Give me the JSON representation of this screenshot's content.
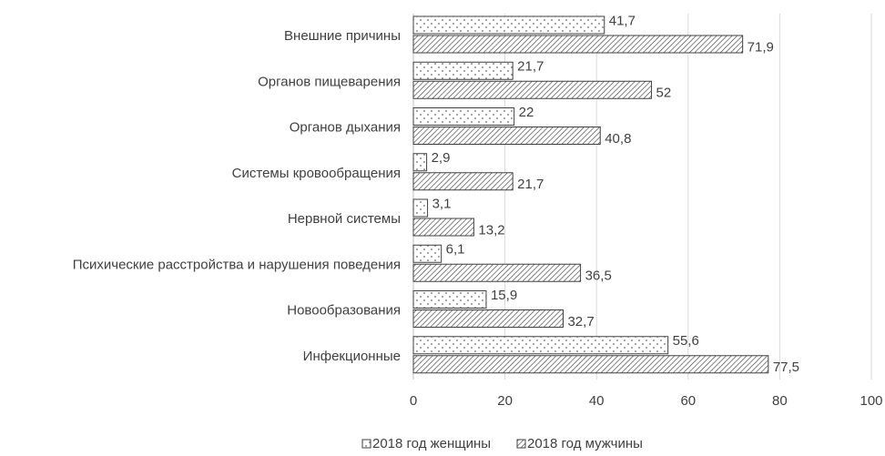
{
  "chart_data": {
    "type": "hbar",
    "categories": [
      "Внешние причины",
      "Органов пищеварения",
      "Органов дыхания",
      "Системы кровообращения",
      "Нервной системы",
      "Психические расстройства и нарушения поведения",
      "Новообразования",
      "Инфекционные"
    ],
    "series": [
      {
        "name": "2018 год женщины",
        "color": "#404040",
        "pattern": "dots",
        "values": [
          41.7,
          21.7,
          22,
          2.9,
          3.1,
          6.1,
          15.9,
          55.6
        ],
        "value_labels": [
          "41,7",
          "21,7",
          "22",
          "2,9",
          "3,1",
          "6,1",
          "15,9",
          "55,6"
        ]
      },
      {
        "name": "2018 год мужчины",
        "color": "#404040",
        "pattern": "hatch",
        "values": [
          71.9,
          52,
          40.8,
          21.7,
          13.2,
          36.5,
          32.7,
          77.5
        ],
        "value_labels": [
          "71,9",
          "52",
          "40,8",
          "21,7",
          "13,2",
          "36,5",
          "32,7",
          "77,5"
        ]
      }
    ],
    "xlim": [
      0,
      100
    ],
    "xticks": [
      0,
      20,
      40,
      60,
      80,
      100
    ],
    "grid": true
  }
}
